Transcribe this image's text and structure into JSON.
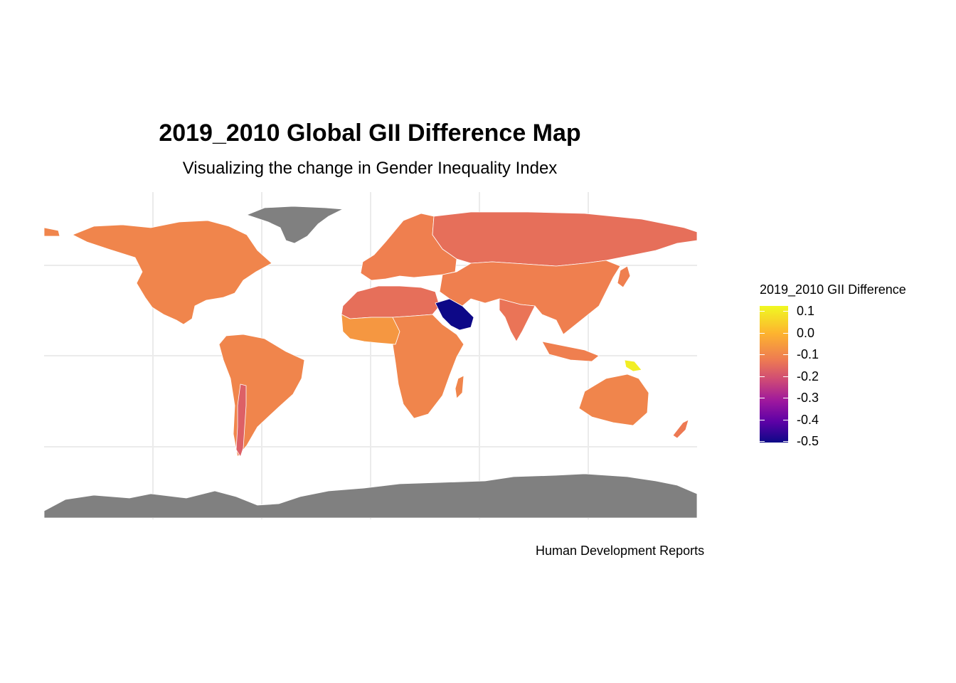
{
  "title": "2019_2010 Global GII Difference Map",
  "subtitle": "Visualizing the change in Gender Inequality Index",
  "caption": "Human Development Reports",
  "legend": {
    "title": "2019_2010 GII Difference",
    "labels": [
      "0.1",
      "0.0",
      "-0.1",
      "-0.2",
      "-0.3",
      "-0.4",
      "-0.5"
    ],
    "colors": [
      "#f0f921",
      "#fdb42f",
      "#ed7953",
      "#cc4778",
      "#9c179e",
      "#5c01a6",
      "#0d0887"
    ]
  },
  "map": {
    "na_color": "#808080",
    "grid_color": "#ebebeb",
    "regions": [
      {
        "name": "Greenland",
        "value": null
      },
      {
        "name": "Antarctica",
        "value": null
      },
      {
        "name": "North America",
        "value": -0.08
      },
      {
        "name": "South America",
        "value": -0.08
      },
      {
        "name": "Chile",
        "value": -0.15
      },
      {
        "name": "Europe",
        "value": -0.09
      },
      {
        "name": "Russia",
        "value": -0.12
      },
      {
        "name": "North Africa",
        "value": -0.12
      },
      {
        "name": "West Africa",
        "value": -0.05
      },
      {
        "name": "Central and Southern Africa",
        "value": -0.08
      },
      {
        "name": "Saudi Arabia",
        "value": -0.5
      },
      {
        "name": "Asia",
        "value": -0.09
      },
      {
        "name": "India",
        "value": -0.11
      },
      {
        "name": "Australia",
        "value": -0.08
      },
      {
        "name": "Papua New Guinea",
        "value": 0.1
      },
      {
        "name": "New Zealand",
        "value": -0.1
      }
    ]
  }
}
